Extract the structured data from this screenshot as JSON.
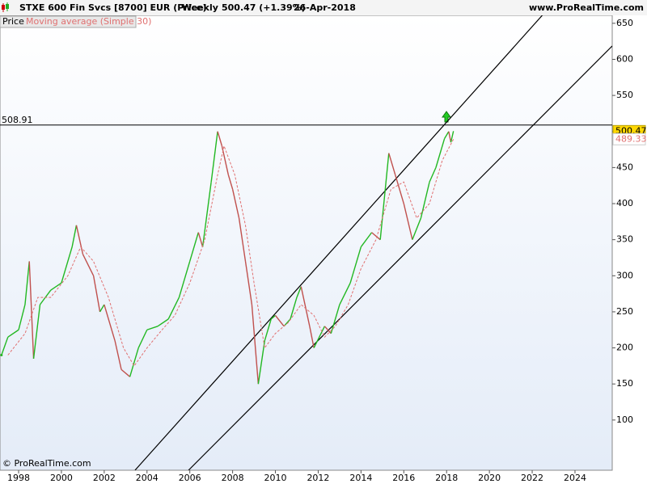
{
  "chart_data": {
    "type": "line",
    "title": "STXE 600 Fin Svcs [8700] EUR (Price)",
    "period": "Weekly",
    "last_change": "500.47 (+1.39%)",
    "date": "26-Apr-2018",
    "site": "www.ProRealTime.com",
    "copyright": "© ProRealTime.com",
    "legend": [
      "Price",
      "Moving average (Simple 30)"
    ],
    "xlim": [
      1997.13,
      2025.74
    ],
    "xticks": [
      1998,
      2000,
      2002,
      2004,
      2006,
      2008,
      2010,
      2012,
      2014,
      2016,
      2018,
      2020,
      2022,
      2024
    ],
    "ylim": [
      30.4,
      661
    ],
    "yticks": [
      100,
      150,
      200,
      250,
      300,
      350,
      400,
      450,
      500,
      550,
      600,
      650
    ],
    "hline": 508.91,
    "trendlines": [
      {
        "x": [
          2003.44,
          2022.53
        ],
        "y": [
          30.4,
          663
        ]
      },
      {
        "x": [
          2005.94,
          2025.74
        ],
        "y": [
          30.4,
          618.5
        ]
      }
    ],
    "series": [
      {
        "name": "Price",
        "up_color": "#22b822",
        "down_color": "#c0504d",
        "x": [
          1997.2,
          1997.5,
          1998.0,
          1998.3,
          1998.5,
          1998.7,
          1999.0,
          1999.5,
          2000.0,
          2000.5,
          2000.7,
          2001.0,
          2001.5,
          2001.8,
          2002.0,
          2002.5,
          2002.8,
          2003.2,
          2003.6,
          2004.0,
          2004.5,
          2005.0,
          2005.5,
          2006.0,
          2006.4,
          2006.6,
          2007.0,
          2007.3,
          2007.5,
          2007.8,
          2008.0,
          2008.3,
          2008.6,
          2008.9,
          2009.2,
          2009.5,
          2009.8,
          2010.0,
          2010.4,
          2010.7,
          2011.0,
          2011.2,
          2011.6,
          2011.8,
          2012.3,
          2012.6,
          2013.0,
          2013.5,
          2014.0,
          2014.5,
          2014.9,
          2015.3,
          2015.6,
          2016.0,
          2016.4,
          2016.8,
          2017.2,
          2017.5,
          2017.9,
          2018.1,
          2018.2,
          2018.32
        ],
        "values": [
          190,
          215,
          225,
          260,
          320,
          185,
          260,
          280,
          290,
          340,
          370,
          330,
          300,
          250,
          260,
          210,
          170,
          160,
          200,
          225,
          230,
          240,
          270,
          320,
          360,
          340,
          430,
          500,
          480,
          440,
          420,
          380,
          320,
          260,
          150,
          210,
          240,
          245,
          230,
          240,
          270,
          285,
          230,
          200,
          230,
          220,
          260,
          290,
          340,
          360,
          350,
          470,
          440,
          400,
          350,
          380,
          430,
          450,
          490,
          500,
          485,
          500.47
        ]
      },
      {
        "name": "Moving average (Simple 30)",
        "color": "#e07070",
        "x": [
          1997.5,
          1998.3,
          1998.9,
          1999.5,
          2000.3,
          2000.9,
          2001.5,
          2002.2,
          2002.9,
          2003.4,
          2004.0,
          2004.7,
          2005.3,
          2006.0,
          2006.7,
          2007.3,
          2007.6,
          2008.1,
          2008.6,
          2009.0,
          2009.5,
          2010.0,
          2010.6,
          2011.2,
          2011.8,
          2012.3,
          2012.8,
          2013.4,
          2014.0,
          2014.7,
          2015.4,
          2016.0,
          2016.6,
          2017.2,
          2017.8,
          2018.32
        ],
        "values": [
          190,
          220,
          270,
          270,
          300,
          340,
          320,
          270,
          200,
          175,
          200,
          225,
          245,
          290,
          350,
          440,
          480,
          440,
          370,
          290,
          200,
          220,
          235,
          260,
          245,
          215,
          230,
          260,
          310,
          350,
          420,
          430,
          380,
          400,
          460,
          489.33
        ]
      }
    ]
  }
}
